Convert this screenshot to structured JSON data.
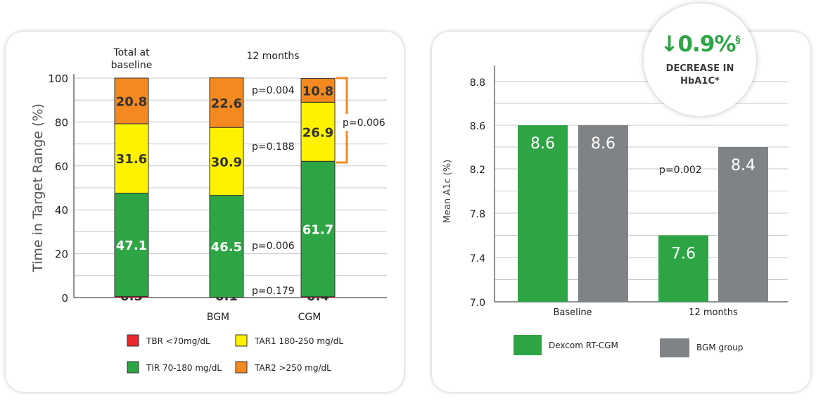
{
  "chart_data": [
    {
      "type": "bar",
      "stacked": true,
      "ylabel": "Time in Target Range  (%)",
      "ylim": [
        0,
        100
      ],
      "yticks": [
        0,
        20,
        40,
        60,
        80,
        100
      ],
      "grid": true,
      "group_labels": [
        "Total at baseline",
        "12 months"
      ],
      "categories": [
        "",
        "BGM",
        "CGM"
      ],
      "series": [
        {
          "name": "TBR <70mg/dL",
          "color": "#e8262b",
          "values": [
            0.5,
            0.1,
            0.4
          ]
        },
        {
          "name": "TIR 70-180 mg/dL",
          "color": "#2ea544",
          "values": [
            47.1,
            46.5,
            61.7
          ]
        },
        {
          "name": "TAR1 180-250 mg/dL",
          "color": "#fff200",
          "values": [
            31.6,
            30.9,
            26.9
          ]
        },
        {
          "name": "TAR2 >250 mg/dL",
          "color": "#f4891f",
          "values": [
            20.8,
            22.6,
            10.8
          ]
        }
      ],
      "annotations": [
        "p=0.004",
        "p=0.188",
        "p=0.006",
        "p=0.179"
      ],
      "bracket_annotation": "p=0.006",
      "legend_position": "bottom"
    },
    {
      "type": "bar",
      "ylabel": "Mean A1c (%)",
      "yticks": [
        7.0,
        7.4,
        7.8,
        8.2,
        8.6,
        8.8
      ],
      "grid": true,
      "categories": [
        "Baseline",
        "12 months"
      ],
      "series": [
        {
          "name": "Dexcom RT-CGM",
          "color": "#2ea544",
          "values": [
            8.6,
            7.6
          ]
        },
        {
          "name": "BGM group",
          "color": "#808385",
          "values": [
            8.6,
            8.4
          ]
        }
      ],
      "annotations": [
        "p=0.002"
      ],
      "legend_position": "bottom"
    }
  ],
  "badge": {
    "value": "↓0.9%",
    "superscript": "§",
    "line1": "DECREASE IN",
    "line2": "HbA1C*",
    "color": "#2ea544"
  }
}
